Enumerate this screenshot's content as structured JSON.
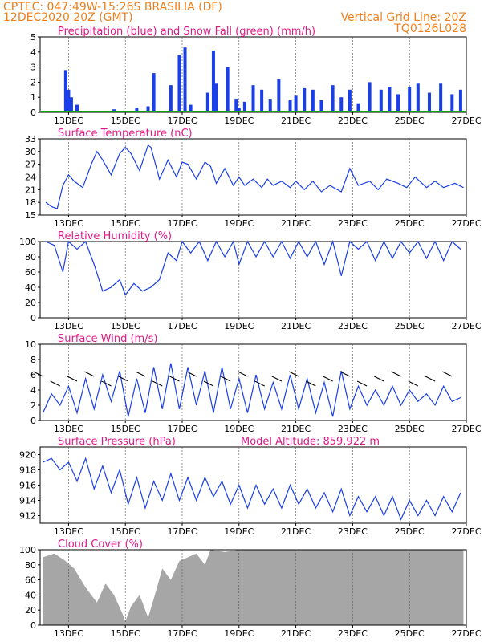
{
  "header": {
    "station": "CPTEC:   047:49W-15:26S   BRASILIA (DF)",
    "date": "12DEC2020 20Z (GMT)",
    "grid_line": "Vertical Grid Line: 20Z",
    "code": "TQ0126L028"
  },
  "colors": {
    "header": "#ef7f1a",
    "title": "#e0198a",
    "line": "#1a3ee8",
    "snow": "#10a010",
    "cloud": "#a6a6a6",
    "grid": "#555555"
  },
  "x_ticks": [
    "13DEC",
    "15DEC",
    "17DEC",
    "19DEC",
    "21DEC",
    "23DEC",
    "25DEC",
    "27DEC"
  ],
  "panels": {
    "precip": {
      "title": "Precipitation (blue) and Snow Fall (green) (mm/h)",
      "yticks": [
        "0",
        "1",
        "2",
        "3",
        "4",
        "5"
      ]
    },
    "temp": {
      "title": "Surface Temperature (nC)",
      "yticks": [
        "15",
        "18",
        "21",
        "24",
        "27",
        "30",
        "33"
      ]
    },
    "rh": {
      "title": "Relative Humidity (%)",
      "yticks": [
        "0",
        "20",
        "40",
        "60",
        "80",
        "100"
      ]
    },
    "wind": {
      "title": "Surface Wind (m/s)",
      "yticks": [
        "0",
        "2",
        "4",
        "6",
        "8",
        "10"
      ]
    },
    "pressure": {
      "title": "Surface Pressure (hPa)",
      "altitude": "Model Altitude: 859.922 m",
      "yticks": [
        "912",
        "914",
        "916",
        "918",
        "920"
      ]
    },
    "cloud": {
      "title": "Cloud Cover (%)",
      "yticks": [
        "0",
        "20",
        "40",
        "60",
        "80",
        "100"
      ]
    }
  },
  "chart_data": [
    {
      "type": "bar",
      "title": "Precipitation (blue) and Snow Fall (green) (mm/h)",
      "ylim": [
        0,
        5
      ],
      "x_day": [
        12.9,
        13.0,
        13.1,
        13.3,
        14.6,
        15.4,
        15.8,
        16.0,
        16.6,
        16.9,
        17.1,
        17.3,
        17.9,
        18.1,
        18.2,
        18.6,
        18.9,
        19.0,
        19.2,
        19.5,
        19.8,
        20.1,
        20.4,
        20.8,
        21.0,
        21.3,
        21.6,
        21.9,
        22.3,
        22.6,
        22.9,
        23.2,
        23.6,
        24.0,
        24.3,
        24.6,
        25.0,
        25.3,
        25.7,
        26.1,
        26.5,
        26.8
      ],
      "values": [
        2.8,
        1.5,
        1.0,
        0.5,
        0.2,
        0.3,
        0.4,
        2.6,
        1.8,
        3.8,
        4.3,
        0.5,
        1.3,
        4.1,
        1.9,
        3.0,
        0.9,
        0.3,
        0.7,
        1.8,
        1.5,
        0.9,
        2.2,
        0.8,
        1.1,
        1.6,
        1.5,
        0.8,
        1.8,
        1.0,
        1.5,
        0.6,
        2.0,
        1.5,
        1.7,
        1.2,
        1.7,
        1.9,
        1.3,
        1.9,
        1.2,
        1.5
      ],
      "snow": 0
    },
    {
      "type": "line",
      "title": "Surface Temperature (nC)",
      "ylim": [
        15,
        33
      ],
      "x_day": [
        12.2,
        12.4,
        12.6,
        12.8,
        13.0,
        13.2,
        13.5,
        13.8,
        14.0,
        14.2,
        14.5,
        14.8,
        15.0,
        15.2,
        15.5,
        15.8,
        15.9,
        16.2,
        16.5,
        16.8,
        17.0,
        17.2,
        17.5,
        17.8,
        18.0,
        18.2,
        18.5,
        18.8,
        19.0,
        19.2,
        19.5,
        19.8,
        20.0,
        20.2,
        20.5,
        20.8,
        21.0,
        21.3,
        21.6,
        21.9,
        22.2,
        22.6,
        22.9,
        23.2,
        23.6,
        23.9,
        24.2,
        24.6,
        24.9,
        25.2,
        25.6,
        25.9,
        26.2,
        26.6,
        26.9
      ],
      "values": [
        18.0,
        17.0,
        16.5,
        22.0,
        24.5,
        23.0,
        21.5,
        27.0,
        30.0,
        28.0,
        24.5,
        29.5,
        31.0,
        29.5,
        25.5,
        31.5,
        31.0,
        23.5,
        28.0,
        24.0,
        27.5,
        27.0,
        23.5,
        27.5,
        26.5,
        22.5,
        26.0,
        22.0,
        24.0,
        22.0,
        23.5,
        21.5,
        23.5,
        22.0,
        23.0,
        21.5,
        23.0,
        21.0,
        23.0,
        20.5,
        22.0,
        20.5,
        26.0,
        22.0,
        23.0,
        21.0,
        23.5,
        22.5,
        21.5,
        24.0,
        21.5,
        23.0,
        21.5,
        22.5,
        21.5
      ]
    },
    {
      "type": "line",
      "title": "Relative Humidity (%)",
      "ylim": [
        0,
        100
      ],
      "x_day": [
        12.2,
        12.5,
        12.8,
        13.0,
        13.3,
        13.6,
        13.9,
        14.2,
        14.5,
        14.8,
        15.0,
        15.3,
        15.6,
        15.9,
        16.2,
        16.5,
        16.8,
        17.0,
        17.3,
        17.6,
        17.9,
        18.2,
        18.5,
        18.8,
        19.0,
        19.3,
        19.6,
        19.9,
        20.2,
        20.5,
        20.8,
        21.1,
        21.4,
        21.7,
        22.0,
        22.3,
        22.6,
        22.9,
        23.2,
        23.5,
        23.8,
        24.1,
        24.4,
        24.7,
        25.0,
        25.3,
        25.6,
        25.9,
        26.2,
        26.5,
        26.8
      ],
      "values": [
        100,
        95,
        60,
        100,
        90,
        100,
        70,
        35,
        40,
        50,
        30,
        45,
        35,
        40,
        50,
        85,
        75,
        100,
        85,
        100,
        75,
        100,
        80,
        100,
        70,
        100,
        80,
        100,
        80,
        100,
        78,
        100,
        80,
        100,
        70,
        100,
        55,
        100,
        90,
        100,
        75,
        100,
        78,
        100,
        85,
        100,
        78,
        100,
        75,
        100,
        90
      ]
    },
    {
      "type": "line",
      "title": "Surface Wind (m/s)",
      "ylim": [
        0,
        10
      ],
      "x_day": [
        12.1,
        12.4,
        12.7,
        13.0,
        13.3,
        13.6,
        13.9,
        14.2,
        14.5,
        14.8,
        15.1,
        15.4,
        15.7,
        16.0,
        16.3,
        16.6,
        16.9,
        17.2,
        17.5,
        17.8,
        18.1,
        18.4,
        18.7,
        19.0,
        19.3,
        19.6,
        19.9,
        20.2,
        20.5,
        20.8,
        21.1,
        21.4,
        21.7,
        22.0,
        22.3,
        22.6,
        22.9,
        23.2,
        23.5,
        23.8,
        24.1,
        24.4,
        24.7,
        25.0,
        25.3,
        25.6,
        25.9,
        26.2,
        26.5,
        26.8
      ],
      "values": [
        1.0,
        3.5,
        2.0,
        4.5,
        1.0,
        5.5,
        1.5,
        6.0,
        2.5,
        6.5,
        0.5,
        5.5,
        1.0,
        7.0,
        1.5,
        7.5,
        1.5,
        7.0,
        2.0,
        6.5,
        1.0,
        7.0,
        1.5,
        5.5,
        1.0,
        6.0,
        1.5,
        5.0,
        1.5,
        6.0,
        1.5,
        5.5,
        1.0,
        5.0,
        0.5,
        6.5,
        1.5,
        4.5,
        2.0,
        4.0,
        2.0,
        4.5,
        2.0,
        4.0,
        2.5,
        3.5,
        2.0,
        4.5,
        2.5,
        3.0
      ]
    },
    {
      "type": "line",
      "title": "Surface Pressure (hPa)",
      "ylim": [
        911,
        921
      ],
      "x_day": [
        12.1,
        12.4,
        12.7,
        13.0,
        13.3,
        13.6,
        13.9,
        14.2,
        14.5,
        14.8,
        15.1,
        15.4,
        15.7,
        16.0,
        16.3,
        16.6,
        16.9,
        17.2,
        17.5,
        17.8,
        18.1,
        18.4,
        18.7,
        19.0,
        19.3,
        19.6,
        19.9,
        20.2,
        20.5,
        20.8,
        21.1,
        21.4,
        21.7,
        22.0,
        22.3,
        22.6,
        22.9,
        23.2,
        23.5,
        23.8,
        24.1,
        24.4,
        24.7,
        25.0,
        25.3,
        25.6,
        25.9,
        26.2,
        26.5,
        26.8
      ],
      "values": [
        919.0,
        919.5,
        918.0,
        919.0,
        916.5,
        919.5,
        915.5,
        918.5,
        915.0,
        918.0,
        913.5,
        917.0,
        913.0,
        916.5,
        914.0,
        917.5,
        914.0,
        917.0,
        914.0,
        917.0,
        914.5,
        916.5,
        913.5,
        916.0,
        913.0,
        916.0,
        913.5,
        915.5,
        913.0,
        916.0,
        913.5,
        915.5,
        913.0,
        915.0,
        912.5,
        915.5,
        912.0,
        914.5,
        912.5,
        914.5,
        912.0,
        914.5,
        911.5,
        914.0,
        912.0,
        914.0,
        912.0,
        914.5,
        912.5,
        915.0
      ]
    },
    {
      "type": "area",
      "title": "Cloud Cover (%)",
      "ylim": [
        0,
        100
      ],
      "x_day": [
        12.1,
        12.5,
        12.9,
        13.2,
        13.6,
        14.0,
        14.3,
        14.6,
        14.9,
        15.0,
        15.2,
        15.5,
        15.8,
        16.0,
        16.3,
        16.6,
        16.9,
        17.2,
        17.5,
        17.8,
        18.0,
        18.5,
        19.0,
        20.0,
        21.0,
        22.0,
        23.0,
        24.0,
        25.0,
        26.0,
        26.9
      ],
      "values": [
        90,
        95,
        85,
        75,
        50,
        30,
        55,
        40,
        15,
        5,
        25,
        40,
        10,
        35,
        75,
        60,
        85,
        90,
        95,
        80,
        100,
        97,
        100,
        100,
        100,
        100,
        100,
        100,
        100,
        100,
        100
      ]
    }
  ]
}
